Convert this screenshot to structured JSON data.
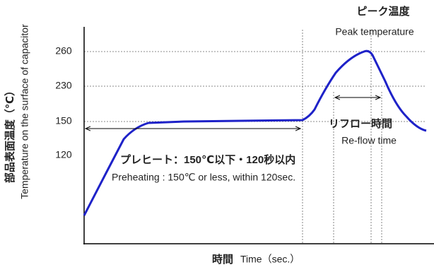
{
  "axis": {
    "y_title_ja": "部品表面温度（℃）",
    "y_title_en": "Temperature on the surface of capacitor",
    "x_title_ja": "時間",
    "x_title_en": "Time（sec.）",
    "y_tick_labels": [
      "260",
      "230",
      "150",
      "120"
    ]
  },
  "annotations": {
    "peak_ja": "ピーク温度",
    "peak_en": "Peak temperature",
    "reflow_ja": "リフロー時間",
    "reflow_en": "Re-flow time",
    "preheat_ja": "プレヒート：150℃以下・120秒以内",
    "preheat_en": "Preheating : 150℃ or less, within 120sec."
  }
}
